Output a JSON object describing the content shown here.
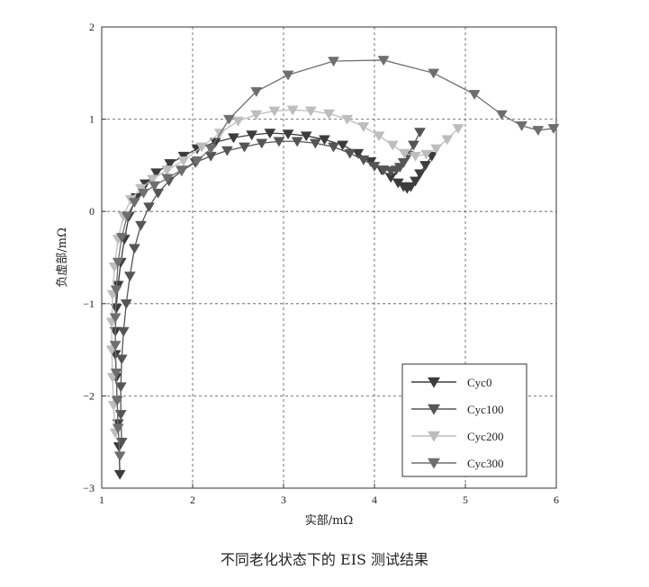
{
  "chart_data": {
    "type": "line",
    "xlabel": "实部/mΩ",
    "ylabel": "负虚部/mΩ",
    "xlim": [
      1,
      6
    ],
    "ylim": [
      -3,
      2
    ],
    "xticks": [
      1,
      2,
      3,
      4,
      5,
      6
    ],
    "yticks": [
      -3,
      -2,
      -1,
      0,
      1,
      2
    ],
    "xtick_labels": [
      "1",
      "2",
      "3",
      "4",
      "5",
      "6"
    ],
    "ytick_labels": [
      "−3",
      "−2",
      "−1",
      "0",
      "1",
      "2"
    ],
    "grid": true,
    "legend_position": "bottom-right",
    "series": [
      {
        "name": "Cyc0",
        "color": "#3c3c3c",
        "marker": "triangle-down",
        "x": [
          1.2,
          1.19,
          1.18,
          1.17,
          1.16,
          1.15,
          1.15,
          1.16,
          1.18,
          1.21,
          1.25,
          1.3,
          1.38,
          1.48,
          1.6,
          1.75,
          1.9,
          2.05,
          2.25,
          2.45,
          2.65,
          2.85,
          3.05,
          3.25,
          3.45,
          3.65,
          3.82,
          3.96,
          4.08,
          4.18,
          4.26,
          4.32,
          4.36,
          4.4,
          4.45,
          4.5,
          4.56,
          4.63
        ],
        "y": [
          -2.85,
          -2.55,
          -2.3,
          -2.05,
          -1.8,
          -1.55,
          -1.3,
          -1.05,
          -0.8,
          -0.55,
          -0.3,
          -0.05,
          0.15,
          0.3,
          0.42,
          0.52,
          0.6,
          0.68,
          0.75,
          0.8,
          0.83,
          0.85,
          0.84,
          0.82,
          0.78,
          0.72,
          0.63,
          0.54,
          0.45,
          0.37,
          0.31,
          0.27,
          0.25,
          0.27,
          0.33,
          0.41,
          0.5,
          0.6
        ]
      },
      {
        "name": "Cyc100",
        "color": "#555555",
        "marker": "triangle-down",
        "x": [
          1.22,
          1.21,
          1.21,
          1.22,
          1.24,
          1.27,
          1.31,
          1.36,
          1.43,
          1.52,
          1.62,
          1.74,
          1.88,
          2.03,
          2.2,
          2.38,
          2.57,
          2.76,
          2.95,
          3.15,
          3.35,
          3.55,
          3.73,
          3.88,
          4.0,
          4.1,
          4.18,
          4.24,
          4.28,
          4.32,
          4.37,
          4.43,
          4.5
        ],
        "y": [
          -2.5,
          -2.2,
          -1.9,
          -1.6,
          -1.3,
          -1.0,
          -0.7,
          -0.4,
          -0.15,
          0.05,
          0.2,
          0.33,
          0.44,
          0.53,
          0.6,
          0.66,
          0.7,
          0.74,
          0.76,
          0.76,
          0.74,
          0.7,
          0.63,
          0.56,
          0.49,
          0.45,
          0.44,
          0.45,
          0.48,
          0.53,
          0.61,
          0.72,
          0.86
        ]
      },
      {
        "name": "Cyc200",
        "color": "#bdbdbd",
        "marker": "triangle-down",
        "x": [
          1.15,
          1.13,
          1.12,
          1.11,
          1.11,
          1.12,
          1.14,
          1.18,
          1.24,
          1.32,
          1.43,
          1.56,
          1.72,
          1.9,
          2.1,
          2.3,
          2.5,
          2.7,
          2.9,
          3.1,
          3.3,
          3.5,
          3.7,
          3.88,
          4.05,
          4.2,
          4.33,
          4.45,
          4.57,
          4.68,
          4.8,
          4.92
        ],
        "y": [
          -2.4,
          -2.1,
          -1.8,
          -1.5,
          -1.2,
          -0.9,
          -0.6,
          -0.3,
          -0.05,
          0.13,
          0.25,
          0.35,
          0.45,
          0.55,
          0.7,
          0.85,
          0.98,
          1.05,
          1.09,
          1.1,
          1.09,
          1.06,
          1.0,
          0.92,
          0.82,
          0.72,
          0.63,
          0.6,
          0.62,
          0.68,
          0.78,
          0.9
        ]
      },
      {
        "name": "Cyc300",
        "color": "#6e6e6e",
        "marker": "triangle-down",
        "x": [
          1.2,
          1.18,
          1.17,
          1.16,
          1.15,
          1.15,
          1.16,
          1.18,
          1.22,
          1.28,
          1.36,
          1.46,
          1.58,
          1.72,
          1.88,
          2.05,
          2.2,
          2.4,
          2.7,
          3.05,
          3.55,
          4.1,
          4.65,
          5.1,
          5.4,
          5.62,
          5.8,
          5.97
        ],
        "y": [
          -2.65,
          -2.35,
          -2.05,
          -1.75,
          -1.45,
          -1.15,
          -0.85,
          -0.55,
          -0.28,
          -0.05,
          0.1,
          0.2,
          0.28,
          0.36,
          0.45,
          0.55,
          0.68,
          1.0,
          1.3,
          1.48,
          1.63,
          1.64,
          1.5,
          1.27,
          1.05,
          0.93,
          0.88,
          0.9
        ]
      }
    ]
  },
  "caption": "不同老化状态下的 EIS 测试结果"
}
